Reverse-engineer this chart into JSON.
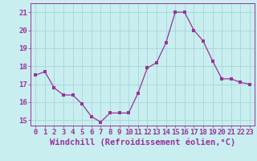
{
  "x": [
    0,
    1,
    2,
    3,
    4,
    5,
    6,
    7,
    8,
    9,
    10,
    11,
    12,
    13,
    14,
    15,
    16,
    17,
    18,
    19,
    20,
    21,
    22,
    23
  ],
  "y": [
    17.5,
    17.7,
    16.8,
    16.4,
    16.4,
    15.9,
    15.2,
    14.9,
    15.4,
    15.4,
    15.4,
    16.5,
    17.9,
    18.2,
    19.3,
    21.0,
    21.0,
    20.0,
    19.4,
    18.3,
    17.3,
    17.3,
    17.1,
    17.0
  ],
  "line_color": "#993399",
  "marker": "s",
  "marker_size": 2.2,
  "bg_color": "#c8eef0",
  "grid_color": "#aad4d8",
  "ylabel_ticks": [
    15,
    16,
    17,
    18,
    19,
    20,
    21
  ],
  "xlabel_ticks": [
    0,
    1,
    2,
    3,
    4,
    5,
    6,
    7,
    8,
    9,
    10,
    11,
    12,
    13,
    14,
    15,
    16,
    17,
    18,
    19,
    20,
    21,
    22,
    23
  ],
  "xlabel": "Windchill (Refroidissement éolien,°C)",
  "ylim": [
    14.7,
    21.5
  ],
  "xlim": [
    -0.5,
    23.5
  ],
  "tick_fontsize": 6.5,
  "xlabel_fontsize": 7.5
}
